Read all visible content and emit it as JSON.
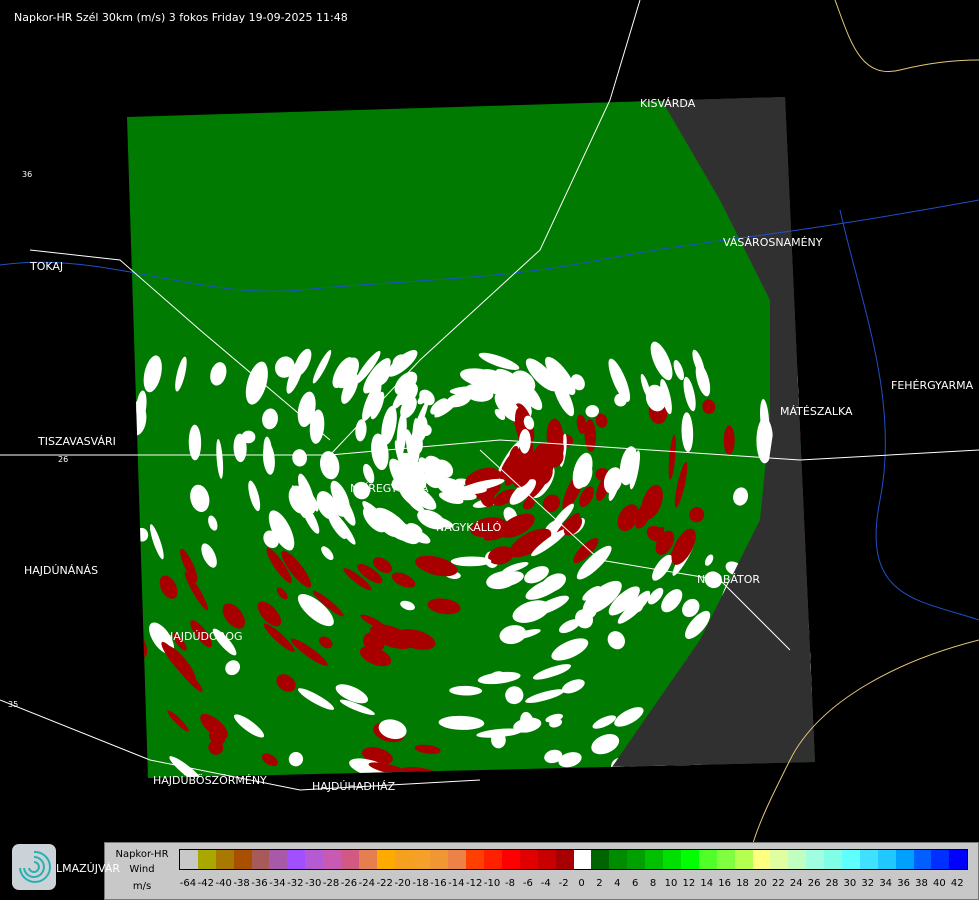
{
  "title": "Napkor-HR Szél 30km (m/s) 3 fokos Friday 19-09-2025 11:48",
  "cities": [
    {
      "name": "KISVÁRDA"
    },
    {
      "name": "TOKAJ"
    },
    {
      "name": "VÁSÁROSNAMÉNY"
    },
    {
      "name": "FEHÉRGYARMA"
    },
    {
      "name": "MÁTÉSZALKA"
    },
    {
      "name": "TISZAVASVÁRI"
    },
    {
      "name": "NYÍREGYHÁZA"
    },
    {
      "name": "NAGYKÁLLÓ"
    },
    {
      "name": "HAJDÚNÁNÁS"
    },
    {
      "name": "NYÍRBÁTOR"
    },
    {
      "name": "HAJDÚDOROG"
    },
    {
      "name": "HAJDÚBÖSZÖRMÉNY"
    },
    {
      "name": "HAJDÚHADHÁZ"
    },
    {
      "name": "LMAZÚJVÁR"
    }
  ],
  "roads": [
    "26",
    "35",
    "36"
  ],
  "legend": {
    "line1": "Napkor-HR",
    "line2": "Wind",
    "unit": "m/s",
    "colors": [
      "#c8c8c8",
      "#a8a800",
      "#a87800",
      "#a85000",
      "#a85a5a",
      "#a85aa8",
      "#a050ff",
      "#b45ad2",
      "#c85ab4",
      "#d25a82",
      "#e67f50",
      "#ffaa00",
      "#f5a01e",
      "#f5a028",
      "#f09632",
      "#ec8246",
      "#ff4000",
      "#ff2000",
      "#ff0000",
      "#e00000",
      "#c80000",
      "#a80000",
      "#ffffff",
      "#006400",
      "#008c00",
      "#00a000",
      "#00c000",
      "#00e000",
      "#00ff00",
      "#50ff28",
      "#80ff40",
      "#b4ff50",
      "#ffff80",
      "#e0ffa0",
      "#c0ffc0",
      "#a0ffe0",
      "#80ffe6",
      "#60ffff",
      "#40e0ff",
      "#20c8ff",
      "#00a0ff",
      "#0060ff",
      "#0030ff",
      "#0000ff"
    ],
    "ticks": [
      "-64",
      "-42",
      "-40",
      "-38",
      "-36",
      "-34",
      "-32",
      "-30",
      "-28",
      "-26",
      "-24",
      "-22",
      "-20",
      "-18",
      "-16",
      "-14",
      "-12",
      "-10",
      "-8",
      "-6",
      "-4",
      "-2",
      "0",
      "2",
      "4",
      "6",
      "8",
      "10",
      "12",
      "14",
      "16",
      "18",
      "20",
      "22",
      "24",
      "26",
      "28",
      "30",
      "32",
      "34",
      "36",
      "38",
      "40",
      "42"
    ]
  }
}
